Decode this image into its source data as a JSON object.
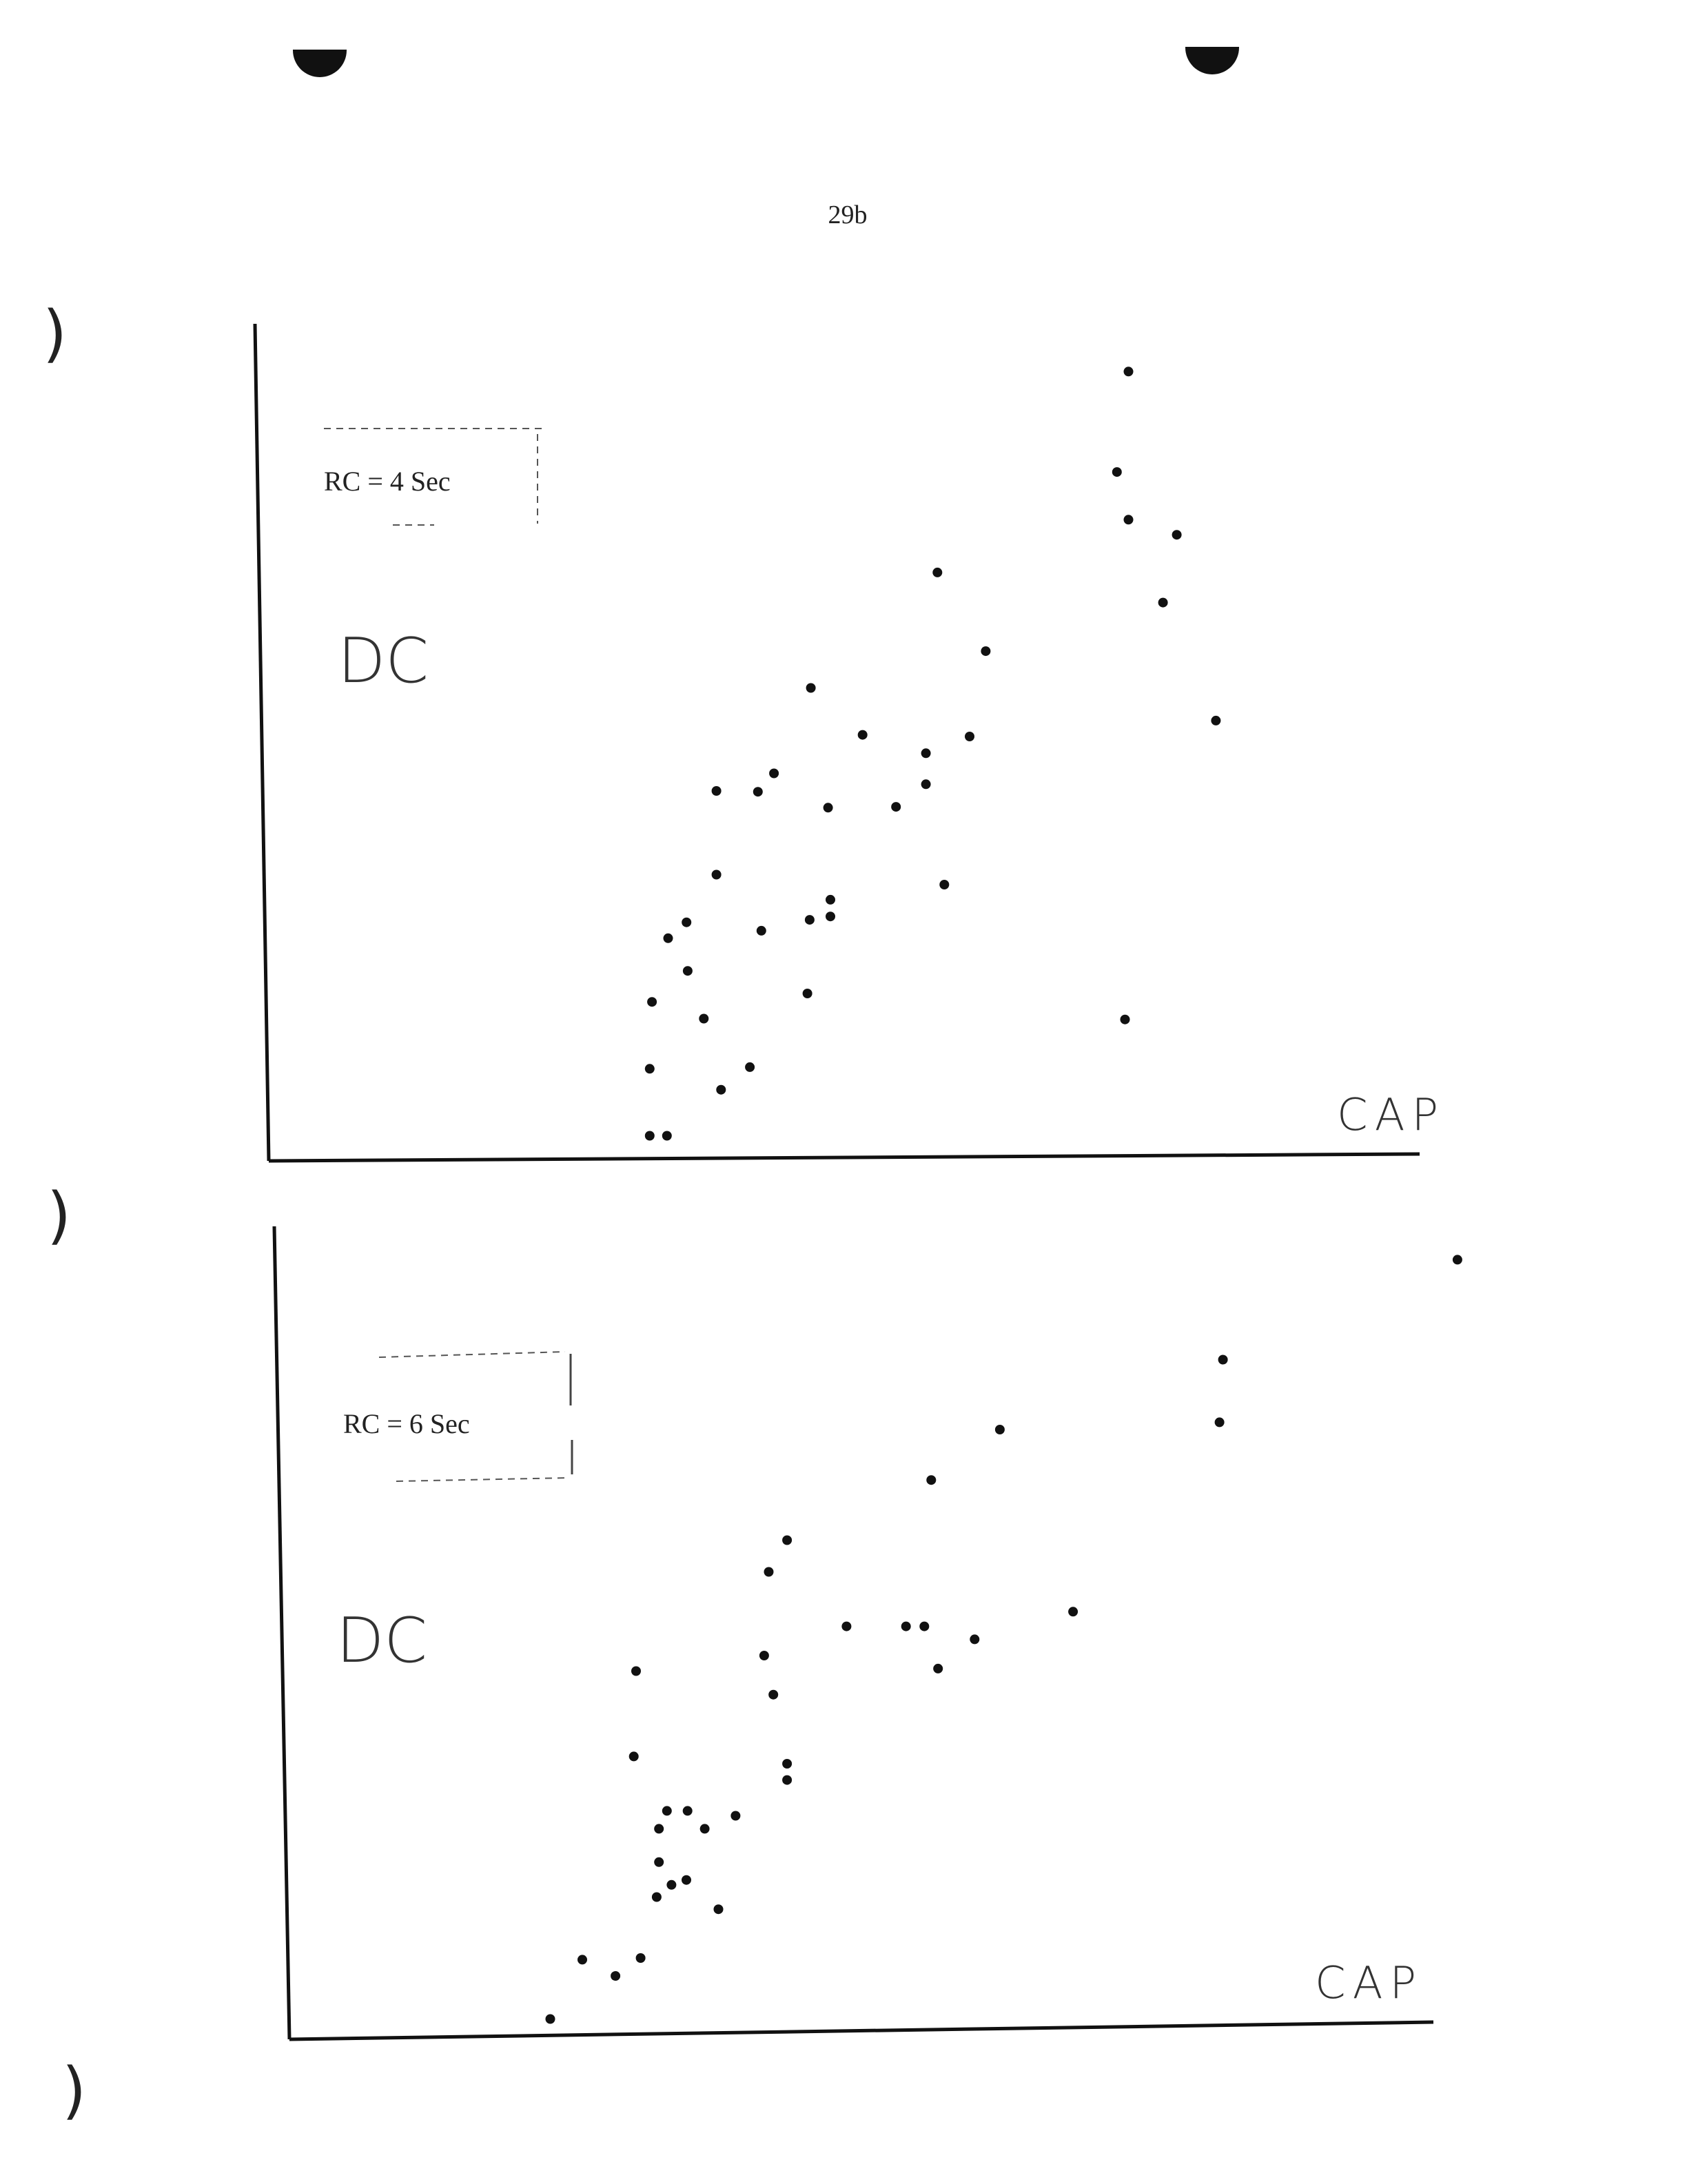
{
  "page": {
    "number": "29b",
    "colors": {
      "ink": "#111111",
      "paper": "#ffffff"
    }
  },
  "chart_data": [
    {
      "type": "scatter",
      "legend_text": "RC = 4 Sec",
      "legend_placement": "top-left",
      "xlabel": "CAP",
      "ylabel": "DC",
      "xlim": [
        0,
        100
      ],
      "ylim": [
        0,
        100
      ],
      "grid": false,
      "points": [
        {
          "x": 33.1,
          "y": 3.0
        },
        {
          "x": 34.6,
          "y": 3.0
        },
        {
          "x": 33.1,
          "y": 11.0
        },
        {
          "x": 39.3,
          "y": 8.5
        },
        {
          "x": 41.8,
          "y": 11.2
        },
        {
          "x": 33.3,
          "y": 19.0
        },
        {
          "x": 37.8,
          "y": 17.0
        },
        {
          "x": 36.4,
          "y": 22.7
        },
        {
          "x": 34.7,
          "y": 26.6
        },
        {
          "x": 36.3,
          "y": 28.5
        },
        {
          "x": 38.9,
          "y": 34.2
        },
        {
          "x": 42.8,
          "y": 27.5
        },
        {
          "x": 46.8,
          "y": 20.0
        },
        {
          "x": 47.0,
          "y": 28.8
        },
        {
          "x": 48.8,
          "y": 29.2
        },
        {
          "x": 48.8,
          "y": 31.2
        },
        {
          "x": 38.9,
          "y": 44.2
        },
        {
          "x": 42.5,
          "y": 44.1
        },
        {
          "x": 43.9,
          "y": 46.3
        },
        {
          "x": 48.6,
          "y": 42.2
        },
        {
          "x": 47.1,
          "y": 56.5
        },
        {
          "x": 51.6,
          "y": 50.9
        },
        {
          "x": 54.5,
          "y": 42.3
        },
        {
          "x": 57.1,
          "y": 48.7
        },
        {
          "x": 57.1,
          "y": 45.0
        },
        {
          "x": 58.7,
          "y": 33.0
        },
        {
          "x": 60.9,
          "y": 50.7
        },
        {
          "x": 62.3,
          "y": 60.9
        },
        {
          "x": 58.1,
          "y": 70.3
        },
        {
          "x": 74.4,
          "y": 16.9
        },
        {
          "x": 74.7,
          "y": 94.3
        },
        {
          "x": 73.7,
          "y": 82.3
        },
        {
          "x": 74.7,
          "y": 76.6
        },
        {
          "x": 78.9,
          "y": 74.8
        },
        {
          "x": 77.7,
          "y": 66.7
        },
        {
          "x": 82.3,
          "y": 52.6
        }
      ]
    },
    {
      "type": "scatter",
      "legend_text": "RC = 6 Sec",
      "legend_placement": "top-left",
      "xlabel": "CAP",
      "ylabel": "DC",
      "xlim": [
        0,
        100
      ],
      "ylim": [
        0,
        100
      ],
      "grid": false,
      "points": [
        {
          "x": 22.8,
          "y": 2.5
        },
        {
          "x": 25.6,
          "y": 9.8
        },
        {
          "x": 28.5,
          "y": 7.8
        },
        {
          "x": 30.7,
          "y": 10.0
        },
        {
          "x": 32.1,
          "y": 17.5
        },
        {
          "x": 32.3,
          "y": 21.8
        },
        {
          "x": 32.3,
          "y": 25.9
        },
        {
          "x": 33.4,
          "y": 19.0
        },
        {
          "x": 34.7,
          "y": 19.6
        },
        {
          "x": 33.0,
          "y": 28.1
        },
        {
          "x": 34.8,
          "y": 28.1
        },
        {
          "x": 36.3,
          "y": 25.9
        },
        {
          "x": 37.5,
          "y": 16.0
        },
        {
          "x": 39.0,
          "y": 27.5
        },
        {
          "x": 30.1,
          "y": 34.8
        },
        {
          "x": 30.3,
          "y": 45.3
        },
        {
          "x": 41.5,
          "y": 47.2
        },
        {
          "x": 42.3,
          "y": 42.4
        },
        {
          "x": 41.9,
          "y": 57.5
        },
        {
          "x": 43.5,
          "y": 61.4
        },
        {
          "x": 43.5,
          "y": 31.9
        },
        {
          "x": 43.5,
          "y": 33.9
        },
        {
          "x": 48.7,
          "y": 50.8
        },
        {
          "x": 53.9,
          "y": 50.8
        },
        {
          "x": 55.5,
          "y": 50.8
        },
        {
          "x": 56.7,
          "y": 45.6
        },
        {
          "x": 59.9,
          "y": 49.2
        },
        {
          "x": 56.1,
          "y": 68.8
        },
        {
          "x": 62.1,
          "y": 75.0
        },
        {
          "x": 68.5,
          "y": 52.6
        },
        {
          "x": 81.3,
          "y": 75.9
        },
        {
          "x": 81.6,
          "y": 83.6
        },
        {
          "x": 102.1,
          "y": 95.9
        },
        {
          "x": 102.1,
          "y": 95.9,
          "omit": true
        }
      ]
    }
  ]
}
